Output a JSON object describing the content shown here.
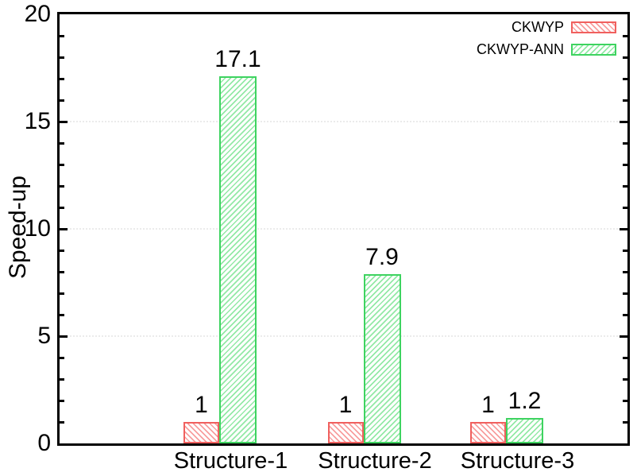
{
  "chart_data": {
    "type": "bar",
    "title": "",
    "xlabel": "",
    "ylabel": "Speed-up",
    "categories": [
      "Structure-1",
      "Structure-2",
      "Structure-3"
    ],
    "series": [
      {
        "name": "CKWYP",
        "values": [
          1,
          1,
          1
        ],
        "display_values": [
          "1",
          "1",
          "1"
        ],
        "hatch_direction": "\\",
        "border_color": "#f0605e",
        "hatch_color": "#f89e9e"
      },
      {
        "name": "CKWYP-ANN",
        "values": [
          17.1,
          7.9,
          1.2
        ],
        "display_values": [
          "17.1",
          "7.9",
          "1.2"
        ],
        "hatch_direction": "/",
        "border_color": "#3ed360",
        "hatch_color": "#93e9a6"
      }
    ],
    "ylim": [
      0,
      20
    ],
    "ytick_major": [
      0,
      5,
      10,
      15,
      20
    ],
    "ytick_labels": [
      "0",
      "5",
      "10",
      "15",
      "20"
    ],
    "ytick_minor_step": 1,
    "grid": "horizontal-dotted-at-major",
    "grid_color": "#ebebeb",
    "legend_position": "top-right",
    "legend_entries": [
      "CKWYP",
      "CKWYP-ANN"
    ],
    "background_color": "#ffffff",
    "axis_color": "#000000"
  }
}
